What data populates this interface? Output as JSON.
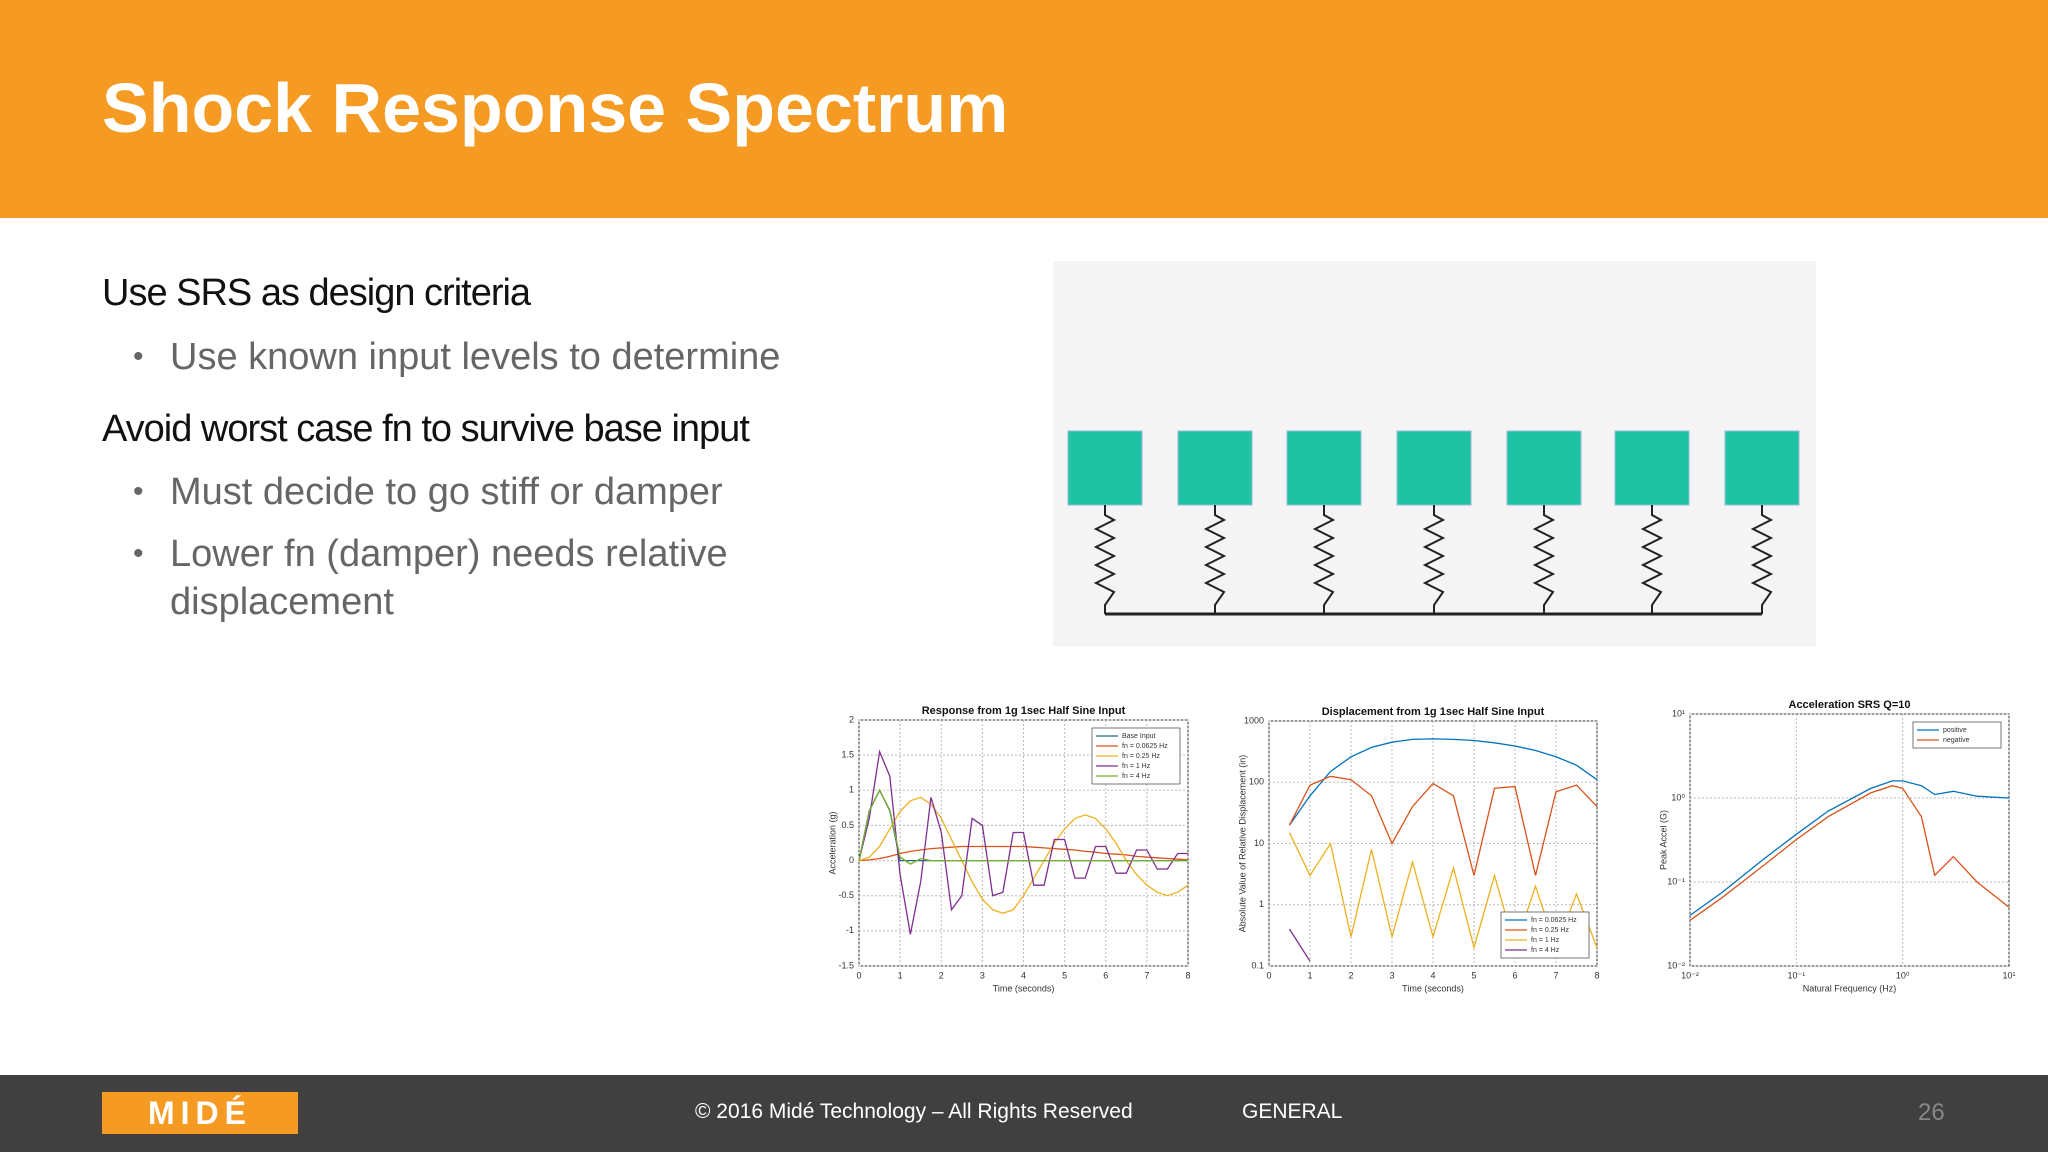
{
  "header": {
    "title": "Shock Response Spectrum"
  },
  "body": {
    "sections": [
      {
        "heading": "Use SRS as design criteria",
        "bullets": [
          "Use known input levels to determine"
        ]
      },
      {
        "heading": "Avoid worst case fn to survive base input",
        "bullets": [
          "Must decide to go stiff or damper",
          "Lower fn (damper) needs relative displacement"
        ]
      }
    ]
  },
  "charts": [
    {
      "type": "line",
      "title": "Response from 1g 1sec Half Sine Input",
      "xlabel": "Time (seconds)",
      "ylabel": "Acceleration (g)",
      "xlim": [
        0,
        8
      ],
      "xticks": [
        0,
        1,
        2,
        3,
        4,
        5,
        6,
        7,
        8
      ],
      "ylim": [
        -1.5,
        2
      ],
      "yticks": [
        -1.5,
        -1,
        -0.5,
        0,
        0.5,
        1,
        1.5,
        2
      ],
      "grid": true,
      "legend": "upper right",
      "x": [
        0,
        0.25,
        0.5,
        0.75,
        1,
        1.25,
        1.5,
        1.75,
        2,
        2.25,
        2.5,
        2.75,
        3,
        3.25,
        3.5,
        3.75,
        4,
        4.25,
        4.5,
        4.75,
        5,
        5.25,
        5.5,
        5.75,
        6,
        6.25,
        6.5,
        6.75,
        7,
        7.25,
        7.5,
        7.75,
        8
      ],
      "series": [
        {
          "name": "Base Input",
          "color": "#1c6b80",
          "values": [
            0,
            0.71,
            1,
            0.71,
            0,
            0,
            0,
            0,
            0,
            0,
            0,
            0,
            0,
            0,
            0,
            0,
            0,
            0,
            0,
            0,
            0,
            0,
            0,
            0,
            0,
            0,
            0,
            0,
            0,
            0,
            0,
            0,
            0
          ]
        },
        {
          "name": "fn = 0.0625 Hz",
          "color": "#d95319",
          "values": [
            0,
            0.01,
            0.03,
            0.06,
            0.1,
            0.13,
            0.15,
            0.17,
            0.18,
            0.19,
            0.2,
            0.2,
            0.2,
            0.2,
            0.2,
            0.2,
            0.2,
            0.19,
            0.18,
            0.17,
            0.16,
            0.15,
            0.13,
            0.12,
            0.1,
            0.09,
            0.08,
            0.06,
            0.05,
            0.04,
            0.03,
            0.02,
            0.01
          ]
        },
        {
          "name": "fn = 0.25 Hz",
          "color": "#edb120",
          "values": [
            0,
            0.05,
            0.2,
            0.45,
            0.7,
            0.85,
            0.9,
            0.8,
            0.6,
            0.3,
            0,
            -0.3,
            -0.55,
            -0.7,
            -0.75,
            -0.7,
            -0.5,
            -0.25,
            0,
            0.25,
            0.45,
            0.6,
            0.65,
            0.6,
            0.45,
            0.25,
            0,
            -0.2,
            -0.35,
            -0.45,
            -0.5,
            -0.45,
            -0.35
          ]
        },
        {
          "name": "fn = 1 Hz",
          "color": "#7e2f8e",
          "values": [
            0,
            0.6,
            1.55,
            1.2,
            -0.2,
            -1.05,
            -0.3,
            0.9,
            0.4,
            -0.7,
            -0.5,
            0.6,
            0.5,
            -0.5,
            -0.45,
            0.4,
            0.4,
            -0.35,
            -0.35,
            0.3,
            0.3,
            -0.25,
            -0.25,
            0.2,
            0.2,
            -0.18,
            -0.18,
            0.15,
            0.15,
            -0.12,
            -0.12,
            0.1,
            0.1
          ]
        },
        {
          "name": "fn = 4 Hz",
          "color": "#77ac30",
          "values": [
            0,
            0.7,
            1,
            0.72,
            0.05,
            -0.05,
            0.03,
            0,
            0,
            0,
            0,
            0,
            0,
            0,
            0,
            0,
            0,
            0,
            0,
            0,
            0,
            0,
            0,
            0,
            0,
            0,
            0,
            0,
            0,
            0,
            0,
            0,
            0
          ]
        }
      ]
    },
    {
      "type": "line",
      "title": "Displacement from 1g 1sec Half Sine Input",
      "xlabel": "Time (seconds)",
      "ylabel": "Absolute Value of Relative Displacement (in)",
      "xlim": [
        0,
        8
      ],
      "xticks": [
        0,
        1,
        2,
        3,
        4,
        5,
        6,
        7,
        8
      ],
      "ylim": [
        0.1,
        1000
      ],
      "yticks": [
        0.1,
        1,
        10,
        100,
        1000
      ],
      "ylog": true,
      "grid": true,
      "legend": "lower right",
      "x": [
        0.5,
        1,
        1.5,
        2,
        2.5,
        3,
        3.5,
        4,
        4.5,
        5,
        5.5,
        6,
        6.5,
        7,
        7.5,
        8
      ],
      "series": [
        {
          "name": "fn = 0.0625 Hz",
          "color": "#0072bd",
          "values": [
            20,
            60,
            150,
            260,
            370,
            450,
            500,
            510,
            500,
            480,
            440,
            390,
            330,
            260,
            190,
            110
          ]
        },
        {
          "name": "fn = 0.25 Hz",
          "color": "#d95319",
          "values": [
            20,
            90,
            125,
            110,
            60,
            10,
            40,
            95,
            60,
            3,
            80,
            85,
            3,
            70,
            90,
            40
          ]
        },
        {
          "name": "fn = 1 Hz",
          "color": "#edb120",
          "values": [
            15,
            3,
            10,
            0.3,
            8,
            0.3,
            5,
            0.3,
            4,
            0.2,
            3,
            0.2,
            2,
            0.2,
            1.5,
            0.2
          ]
        },
        {
          "name": "fn = 4 Hz",
          "color": "#7e2f8e",
          "values": [
            0.4,
            0.12,
            null,
            null,
            null,
            null,
            null,
            null,
            null,
            null,
            null,
            null,
            null,
            null,
            null,
            null
          ]
        }
      ]
    },
    {
      "type": "line",
      "title": "Acceleration SRS Q=10",
      "xlabel": "Natural Frequency (Hz)",
      "ylabel": "Peak Accel (G)",
      "xlim": [
        0.01,
        10
      ],
      "xticks": [
        {
          "value": 0.01,
          "label": "10⁻²"
        },
        {
          "value": 0.1,
          "label": "10⁻¹"
        },
        {
          "value": 1,
          "label": "10⁰"
        },
        {
          "value": 10,
          "label": "10¹"
        }
      ],
      "xlog": true,
      "ylim": [
        0.01,
        10
      ],
      "yticks": [
        {
          "value": 0.01,
          "label": "10⁻²"
        },
        {
          "value": 0.1,
          "label": "10⁻¹"
        },
        {
          "value": 1,
          "label": "10⁰"
        },
        {
          "value": 10,
          "label": "10¹"
        }
      ],
      "ylog": true,
      "grid": true,
      "legend": "upper right",
      "x": [
        0.01,
        0.02,
        0.05,
        0.1,
        0.2,
        0.5,
        0.8,
        1,
        1.5,
        2,
        3,
        5,
        10
      ],
      "series": [
        {
          "name": "positive",
          "color": "#0072bd",
          "values": [
            0.04,
            0.075,
            0.19,
            0.37,
            0.7,
            1.3,
            1.6,
            1.6,
            1.4,
            1.1,
            1.2,
            1.05,
            1.0
          ]
        },
        {
          "name": "negative",
          "color": "#d95319",
          "values": [
            0.035,
            0.065,
            0.16,
            0.32,
            0.6,
            1.15,
            1.4,
            1.3,
            0.6,
            0.12,
            0.2,
            0.1,
            0.05
          ]
        }
      ]
    }
  ],
  "footer": {
    "logo": "MIDÉ",
    "copyright": "© 2016 Midé Technology – All Rights Reserved",
    "classification": "GENERAL",
    "page_number": "26"
  }
}
